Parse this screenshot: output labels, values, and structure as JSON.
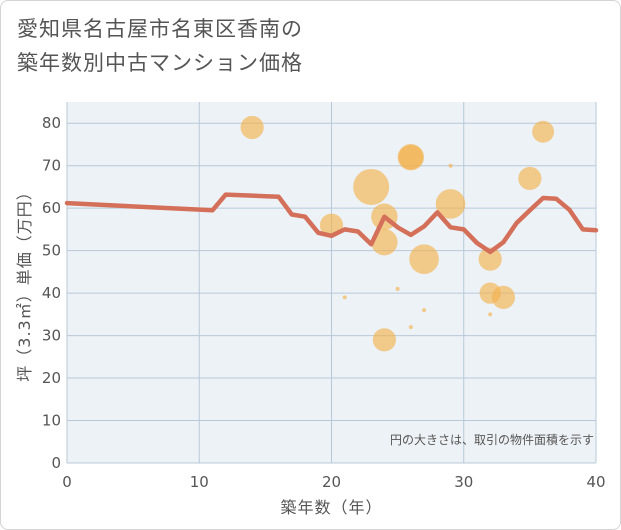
{
  "title": {
    "line1": "愛知県名古屋市名東区香南の",
    "line2": "築年数別中古マンション価格"
  },
  "colors": {
    "plot_background": "#edf2f7",
    "grid": "#b9c8d8",
    "line": "#d4705a",
    "bubble": "#f3b24e"
  },
  "chart_data": {
    "type": "scatter",
    "title": "愛知県名古屋市名東区香南の築年数別中古マンション価格",
    "xlabel": "築年数（年）",
    "ylabel": "坪（3.3㎡）単価（万円）",
    "xlim": [
      0,
      40
    ],
    "ylim": [
      0,
      85
    ],
    "x_ticks": [
      0,
      10,
      20,
      30,
      40
    ],
    "y_ticks": [
      0,
      10,
      20,
      30,
      40,
      50,
      60,
      70,
      80
    ],
    "grid": true,
    "note": "円の大きさは、取引の物件面積を示す",
    "line_series": {
      "x": [
        0,
        11,
        12,
        16,
        17,
        18,
        19,
        20,
        21,
        22,
        23,
        24,
        25,
        26,
        27,
        28,
        29,
        30,
        31,
        32,
        33,
        34,
        35,
        36,
        37,
        38,
        39,
        40
      ],
      "y": [
        61.2,
        59.5,
        63.2,
        62.7,
        58.5,
        58.0,
        54.2,
        53.5,
        55.0,
        54.5,
        51.5,
        58.0,
        55.5,
        53.7,
        55.7,
        59.0,
        55.5,
        55.0,
        51.8,
        49.7,
        52.0,
        56.5,
        59.5,
        62.4,
        62.2,
        59.6,
        55.0,
        54.8
      ]
    },
    "bubbles": [
      {
        "x": 14,
        "y": 79,
        "size": 3
      },
      {
        "x": 20,
        "y": 56,
        "size": 3
      },
      {
        "x": 21,
        "y": 39,
        "size": 1
      },
      {
        "x": 23,
        "y": 65,
        "size": 5
      },
      {
        "x": 24,
        "y": 58,
        "size": 3.5
      },
      {
        "x": 24,
        "y": 52,
        "size": 3.5
      },
      {
        "x": 24,
        "y": 29,
        "size": 3
      },
      {
        "x": 25,
        "y": 41,
        "size": 1
      },
      {
        "x": 26,
        "y": 72,
        "size": 3.5
      },
      {
        "x": 26,
        "y": 72,
        "size": 3.2
      },
      {
        "x": 26,
        "y": 32,
        "size": 1
      },
      {
        "x": 27,
        "y": 48,
        "size": 4
      },
      {
        "x": 27,
        "y": 36,
        "size": 1
      },
      {
        "x": 29,
        "y": 70,
        "size": 1
      },
      {
        "x": 29,
        "y": 61,
        "size": 4
      },
      {
        "x": 32,
        "y": 48,
        "size": 3
      },
      {
        "x": 32,
        "y": 40,
        "size": 2.7
      },
      {
        "x": 32,
        "y": 35,
        "size": 1
      },
      {
        "x": 33,
        "y": 39,
        "size": 3
      },
      {
        "x": 35,
        "y": 67,
        "size": 3
      },
      {
        "x": 36,
        "y": 78,
        "size": 2.8
      }
    ]
  }
}
